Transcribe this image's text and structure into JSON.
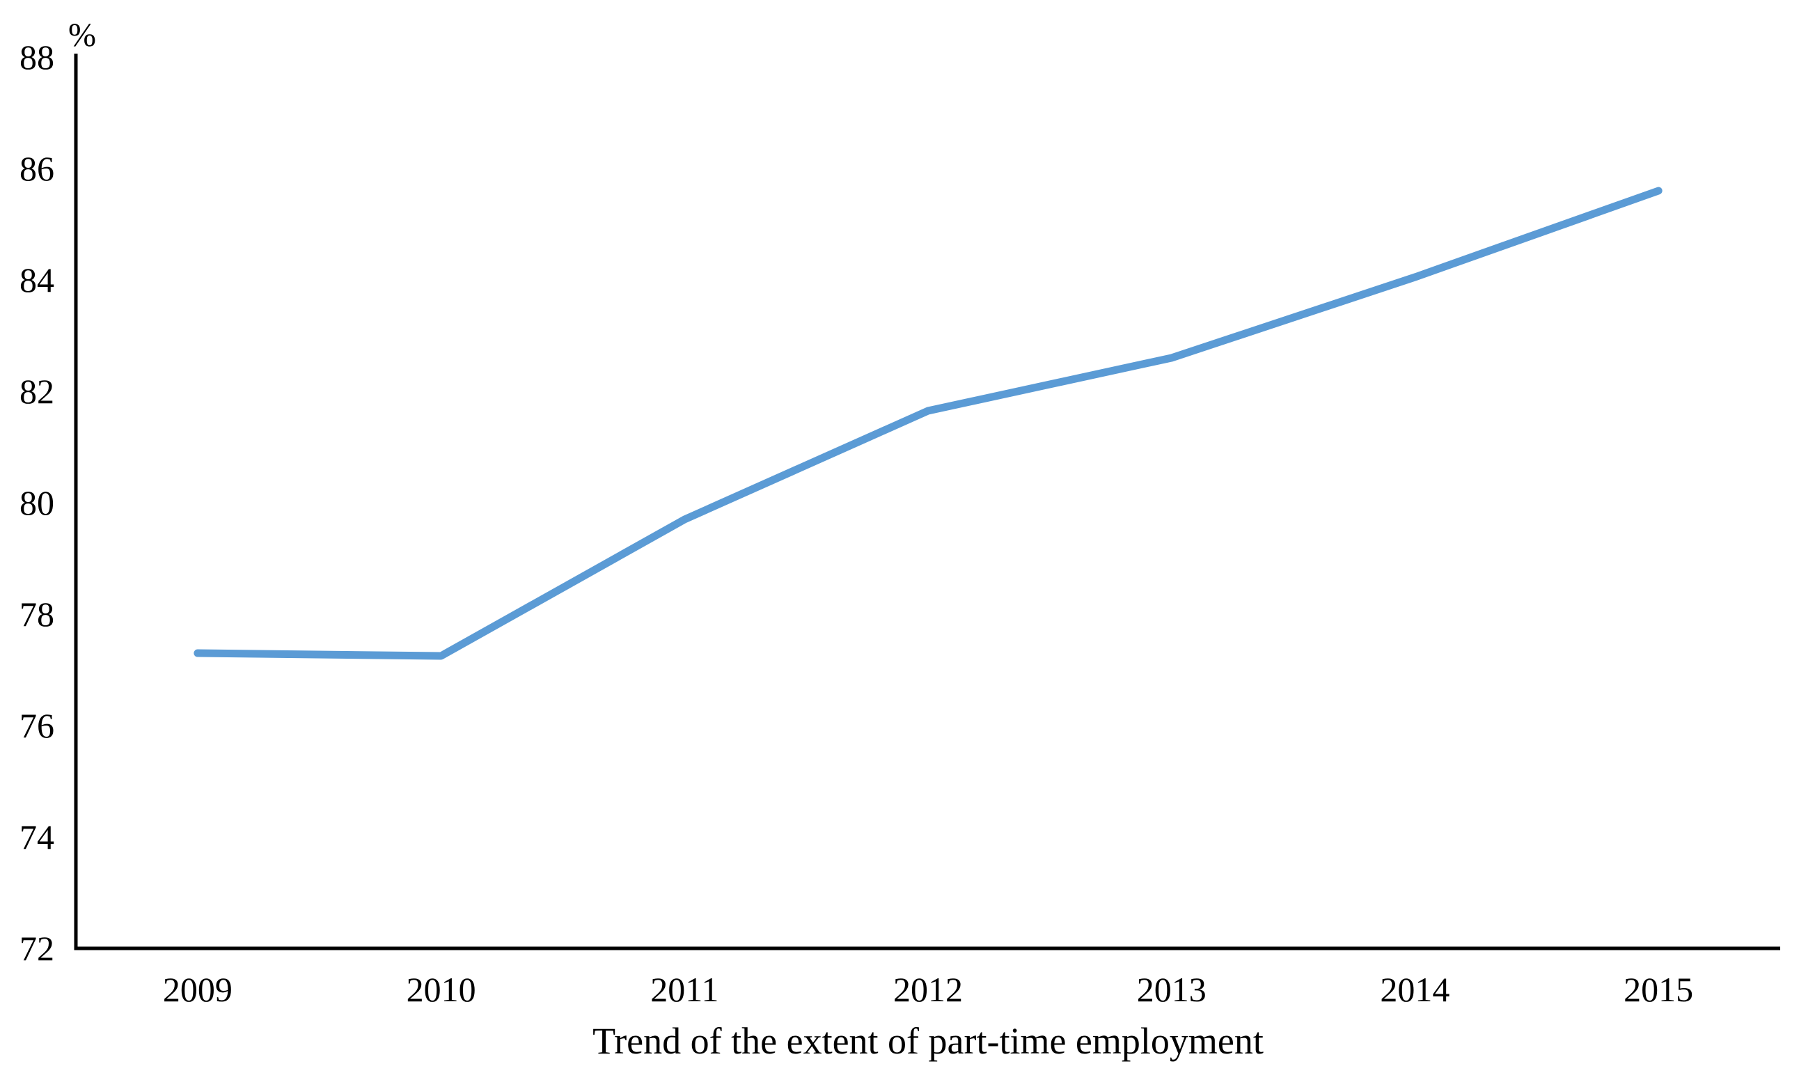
{
  "chart_data": {
    "type": "line",
    "title": "Trend of the extent of part-time employment",
    "unit_label": "%",
    "categories": [
      "2009",
      "2010",
      "2011",
      "2012",
      "2013",
      "2014",
      "2015"
    ],
    "values": [
      77.3,
      77.25,
      79.7,
      81.65,
      82.6,
      84.05,
      85.6
    ],
    "ylim": [
      72,
      88
    ],
    "ytick_step": 2,
    "yticks": [
      "72",
      "74",
      "76",
      "78",
      "80",
      "82",
      "84",
      "86",
      "88"
    ],
    "xlabel": "",
    "ylabel": "%",
    "grid": false,
    "legend": false,
    "colors": {
      "line": "#5B9BD5",
      "axis": "#000000",
      "text": "#000000",
      "background": "#FFFFFF"
    }
  }
}
